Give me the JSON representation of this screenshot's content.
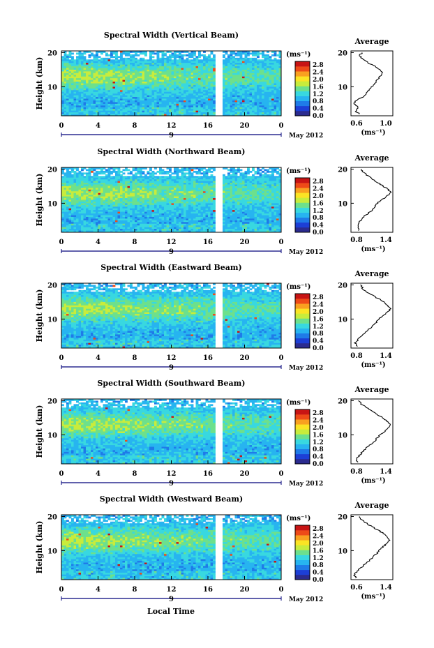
{
  "figure": {
    "xlabel": "Local Time",
    "date_label": "May 2012",
    "day_label": "9",
    "ylabel": "Height (km)",
    "unit_label": "(ms⁻¹)",
    "profile_title": "Average",
    "profile_xlabel": "(ms⁻¹)"
  },
  "colorscale": {
    "ticks": [
      "2.8",
      "2.4",
      "2.0",
      "1.6",
      "1.2",
      "0.8",
      "0.4",
      "0.0"
    ],
    "colors": [
      "#2b2b8f",
      "#1d3fd6",
      "#1f7be8",
      "#27b4f0",
      "#38d8e0",
      "#6de08c",
      "#c8ec3c",
      "#fbe424",
      "#f9a020",
      "#ee4a18",
      "#c81414"
    ]
  },
  "chart_data": [
    {
      "type": "heatmap",
      "title": "Spectral Width (Vertical Beam)",
      "x_ticks": [
        "0",
        "4",
        "8",
        "12",
        "16",
        "20",
        "0"
      ],
      "xlim": [
        0,
        24
      ],
      "y_ticks": [
        "20",
        "10"
      ],
      "ylim": [
        1.5,
        20.5
      ],
      "colorbar_range": [
        0.0,
        3.0
      ],
      "gap_hours": [
        16.9,
        17.4
      ],
      "profile": {
        "title": "Average",
        "xlim": [
          0.55,
          1.2
        ],
        "x_ticks": [
          "0.6",
          "1.0"
        ],
        "y_ticks": [
          "20",
          "10"
        ],
        "heights_km": [
          2,
          3,
          4,
          5,
          6,
          7,
          8,
          9,
          10,
          11,
          12,
          13,
          14,
          15,
          16,
          17,
          18,
          19,
          20
        ],
        "values": [
          0.68,
          0.62,
          0.66,
          0.6,
          0.63,
          0.74,
          0.78,
          0.82,
          0.88,
          0.92,
          0.96,
          1.0,
          1.04,
          1.0,
          0.92,
          0.82,
          0.74,
          0.68,
          0.72
        ]
      }
    },
    {
      "type": "heatmap",
      "title": "Spectral Width (Northward Beam)",
      "x_ticks": [
        "0",
        "4",
        "8",
        "12",
        "16",
        "20",
        "0"
      ],
      "xlim": [
        0,
        24
      ],
      "y_ticks": [
        "20",
        "10"
      ],
      "ylim": [
        1.5,
        20.5
      ],
      "colorbar_range": [
        0.0,
        3.0
      ],
      "gap_hours": [
        17.0,
        17.6
      ],
      "profile": {
        "title": "Average",
        "xlim": [
          0.6,
          1.4
        ],
        "x_ticks": [
          "0.8",
          "1.4"
        ],
        "y_ticks": [
          "20",
          "10"
        ],
        "heights_km": [
          2,
          3,
          4,
          5,
          6,
          7,
          8,
          9,
          10,
          11,
          12,
          13,
          14,
          15,
          16,
          17,
          18,
          19,
          20
        ],
        "values": [
          0.76,
          0.72,
          0.74,
          0.78,
          0.84,
          0.92,
          1.0,
          1.06,
          1.1,
          1.18,
          1.28,
          1.36,
          1.32,
          1.22,
          1.12,
          1.02,
          0.92,
          0.84,
          0.8
        ]
      }
    },
    {
      "type": "heatmap",
      "title": "Spectral Width (Eastward Beam)",
      "x_ticks": [
        "0",
        "4",
        "8",
        "12",
        "16",
        "20",
        "0"
      ],
      "xlim": [
        0,
        24
      ],
      "y_ticks": [
        "20",
        "10"
      ],
      "ylim": [
        1.5,
        20.5
      ],
      "colorbar_range": [
        0.0,
        3.0
      ],
      "gap_hours": [
        17.0,
        17.6
      ],
      "profile": {
        "title": "Average",
        "xlim": [
          0.6,
          1.4
        ],
        "x_ticks": [
          "0.8",
          "1.4"
        ],
        "y_ticks": [
          "20",
          "10"
        ],
        "heights_km": [
          2,
          3,
          4,
          5,
          6,
          7,
          8,
          9,
          10,
          11,
          12,
          13,
          14,
          15,
          16,
          17,
          18,
          19,
          20
        ],
        "values": [
          0.72,
          0.68,
          0.74,
          0.8,
          0.86,
          0.94,
          1.02,
          1.08,
          1.12,
          1.2,
          1.3,
          1.36,
          1.3,
          1.22,
          1.12,
          1.0,
          0.9,
          0.82,
          0.78
        ]
      }
    },
    {
      "type": "heatmap",
      "title": "Spectral Width (Southward Beam)",
      "x_ticks": [
        "0",
        "4",
        "8",
        "12",
        "16",
        "20",
        "0"
      ],
      "xlim": [
        0,
        24
      ],
      "y_ticks": [
        "20",
        "10"
      ],
      "ylim": [
        1.5,
        20.5
      ],
      "colorbar_range": [
        0.0,
        3.0
      ],
      "gap_hours": [
        17.0,
        17.6
      ],
      "profile": {
        "title": "Average",
        "xlim": [
          0.6,
          1.4
        ],
        "x_ticks": [
          "0.8",
          "1.4"
        ],
        "y_ticks": [
          "20",
          "10"
        ],
        "heights_km": [
          2,
          3,
          4,
          5,
          6,
          7,
          8,
          9,
          10,
          11,
          12,
          13,
          14,
          15,
          16,
          17,
          18,
          19,
          20
        ],
        "values": [
          0.72,
          0.7,
          0.76,
          0.82,
          0.88,
          0.96,
          1.04,
          1.1,
          1.16,
          1.24,
          1.32,
          1.36,
          1.3,
          1.2,
          1.1,
          1.0,
          0.9,
          0.8,
          0.74
        ]
      }
    },
    {
      "type": "heatmap",
      "title": "Spectral Width (Westward Beam)",
      "x_ticks": [
        "0",
        "4",
        "8",
        "12",
        "16",
        "20",
        "0"
      ],
      "xlim": [
        0,
        24
      ],
      "y_ticks": [
        "20",
        "10"
      ],
      "ylim": [
        1.5,
        20.5
      ],
      "colorbar_range": [
        0.0,
        3.0
      ],
      "gap_hours": [
        17.0,
        17.6
      ],
      "profile": {
        "title": "Average",
        "xlim": [
          0.6,
          1.4
        ],
        "x_ticks": [
          "0.6",
          "1.4"
        ],
        "y_ticks": [
          "20",
          "10"
        ],
        "heights_km": [
          2,
          3,
          4,
          5,
          6,
          7,
          8,
          9,
          10,
          11,
          12,
          13,
          14,
          15,
          16,
          17,
          18,
          19,
          20
        ],
        "values": [
          0.7,
          0.66,
          0.72,
          0.8,
          0.86,
          0.94,
          1.02,
          1.08,
          1.14,
          1.2,
          1.28,
          1.34,
          1.3,
          1.22,
          1.12,
          1.0,
          0.9,
          0.8,
          0.76
        ]
      }
    }
  ]
}
